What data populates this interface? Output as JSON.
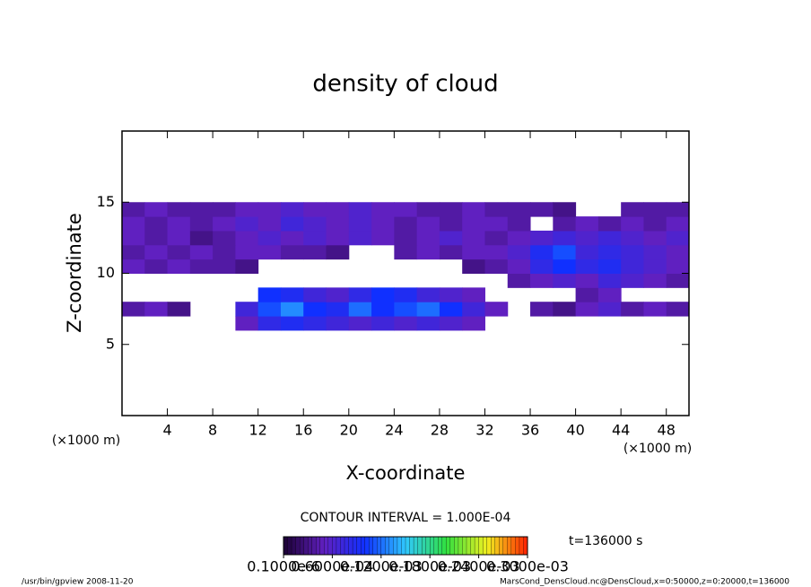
{
  "chart_data": {
    "type": "heatmap",
    "title": "density of cloud",
    "x_label": "X-coordinate",
    "y_label": "Z-coordinate",
    "x_unit": "(×1000 m)",
    "y_unit": "(×1000 m)",
    "xlim": [
      0,
      50
    ],
    "ylim": [
      0,
      20
    ],
    "xticks": [
      4,
      8,
      12,
      16,
      20,
      24,
      28,
      32,
      36,
      40,
      44,
      48
    ],
    "yticks": [
      5,
      10,
      15
    ],
    "x": [
      1,
      3,
      5,
      7,
      9,
      11,
      13,
      15,
      17,
      19,
      21,
      23,
      25,
      27,
      29,
      31,
      33,
      35,
      37,
      39,
      41,
      43,
      45,
      47,
      49
    ],
    "y": [
      6.5,
      7.5,
      8.5,
      9.5,
      10.5,
      11.5,
      12.5,
      13.5,
      14.5
    ],
    "values": [
      [
        null,
        null,
        null,
        null,
        null,
        5e-05,
        8e-05,
        9e-05,
        8e-05,
        7e-05,
        6e-05,
        7e-05,
        6e-05,
        7e-05,
        6e-05,
        5e-05,
        null,
        null,
        null,
        null,
        null,
        null,
        null,
        null,
        null
      ],
      [
        4e-05,
        5e-05,
        3e-05,
        null,
        null,
        7e-05,
        0.00011,
        0.00013,
        0.0001,
        9e-05,
        0.00012,
        0.0001,
        0.00011,
        0.00012,
        0.0001,
        7e-05,
        5e-05,
        null,
        4e-05,
        3e-05,
        5e-05,
        6e-05,
        4e-05,
        5e-05,
        4e-05
      ],
      [
        null,
        null,
        null,
        null,
        null,
        null,
        0.0001,
        9e-05,
        7e-05,
        6e-05,
        8e-05,
        0.0001,
        9e-05,
        7e-05,
        6e-05,
        5e-05,
        null,
        null,
        null,
        null,
        4e-05,
        5e-05,
        null,
        null,
        null
      ],
      [
        null,
        null,
        null,
        null,
        null,
        null,
        null,
        null,
        null,
        null,
        null,
        null,
        null,
        null,
        null,
        null,
        null,
        4e-05,
        5e-05,
        6e-05,
        5e-05,
        7e-05,
        6e-05,
        5e-05,
        4e-05
      ],
      [
        5e-05,
        4e-05,
        5e-05,
        4e-05,
        4e-05,
        3e-05,
        null,
        null,
        null,
        null,
        null,
        null,
        null,
        null,
        null,
        3e-05,
        4e-05,
        5e-05,
        8e-05,
        0.0001,
        8e-05,
        9e-05,
        7e-05,
        6e-05,
        5e-05
      ],
      [
        4e-05,
        5e-05,
        4e-05,
        5e-05,
        4e-05,
        5e-05,
        5e-05,
        4e-05,
        4e-05,
        3e-05,
        null,
        null,
        4e-05,
        5e-05,
        4e-05,
        5e-05,
        5e-05,
        6e-05,
        9e-05,
        0.00011,
        7e-05,
        8e-05,
        7e-05,
        6e-05,
        5e-05
      ],
      [
        5e-05,
        4e-05,
        5e-05,
        3e-05,
        4e-05,
        5e-05,
        6e-05,
        5e-05,
        6e-05,
        5e-05,
        6e-05,
        5e-05,
        4e-05,
        5e-05,
        6e-05,
        5e-05,
        4e-05,
        5e-05,
        6e-05,
        7e-05,
        6e-05,
        7e-05,
        6e-05,
        5e-05,
        6e-05
      ],
      [
        5e-05,
        4e-05,
        5e-05,
        4e-05,
        5e-05,
        6e-05,
        5e-05,
        7e-05,
        6e-05,
        5e-05,
        6e-05,
        5e-05,
        4e-05,
        5e-05,
        4e-05,
        5e-05,
        5e-05,
        4e-05,
        null,
        4e-05,
        5e-05,
        4e-05,
        5e-05,
        4e-05,
        5e-05
      ],
      [
        4e-05,
        5e-05,
        4e-05,
        4e-05,
        4e-05,
        5e-05,
        5e-05,
        6e-05,
        5e-05,
        5e-05,
        6e-05,
        5e-05,
        5e-05,
        4e-05,
        4e-05,
        5e-05,
        4e-05,
        4e-05,
        4e-05,
        3e-05,
        null,
        null,
        4e-05,
        4e-05,
        4e-05
      ]
    ],
    "colormap": [
      "#1a0033",
      "#6020c0",
      "#1030ff",
      "#30c8ff",
      "#30e040",
      "#f0f020",
      "#ff2000"
    ],
    "clim": [
      0,
      0.0003
    ],
    "cticks": [
      {
        "value": 1e-07,
        "label": "0.1000e-6"
      },
      {
        "value": 6e-05,
        "label": "0.6000e-04"
      },
      {
        "value": 0.00012,
        "label": "0.1200e-03"
      },
      {
        "value": 0.00018,
        "label": "0.1800e-03"
      },
      {
        "value": 0.00024,
        "label": "0.2400e-03"
      },
      {
        "value": 0.0003,
        "label": "0.3000e-03"
      }
    ],
    "contour_note": "CONTOUR INTERVAL = 1.000E-04",
    "time_label": "t=136000 s",
    "footer_left": "/usr/bin/gpview   2008-11-20",
    "footer_right": "MarsCond_DensCloud.nc@DensCloud,x=0:50000,z=0:20000,t=136000"
  }
}
